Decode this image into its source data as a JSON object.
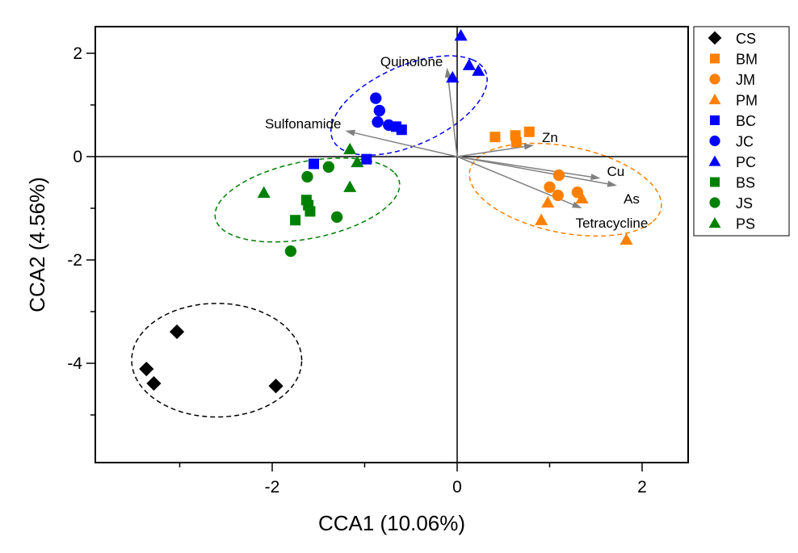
{
  "chart_data": {
    "type": "scatter",
    "title": "",
    "xlabel": "CCA1 (10.06%)",
    "ylabel": "CCA2 (4.56%)",
    "xlim": [
      -3.9,
      2.5
    ],
    "ylim": [
      -5.9,
      2.5
    ],
    "x_ticks": [
      -2,
      0,
      2
    ],
    "x_tick_labels": [
      "-2",
      "0",
      "2"
    ],
    "x_minor_ticks": [
      -3,
      -1,
      1
    ],
    "y_ticks": [
      2,
      0,
      -2,
      -4
    ],
    "y_tick_labels": [
      "2",
      "0",
      "-2",
      "-4"
    ],
    "y_minor_ticks": [
      1,
      -1,
      -3,
      -5
    ],
    "grid": false,
    "zero_lines": true,
    "legend_position": "right-top-outside",
    "series": [
      {
        "name": "CS",
        "marker": "diamond",
        "color": "#000000",
        "points": [
          [
            -3.03,
            -3.39
          ],
          [
            -3.36,
            -4.11
          ],
          [
            -3.28,
            -4.39
          ],
          [
            -1.96,
            -4.44
          ]
        ]
      },
      {
        "name": "BM",
        "marker": "square",
        "color": "#ff8000",
        "points": [
          [
            0.41,
            0.38
          ],
          [
            0.63,
            0.41
          ],
          [
            0.64,
            0.28
          ],
          [
            0.78,
            0.48
          ]
        ]
      },
      {
        "name": "JM",
        "marker": "circle",
        "color": "#ff8000",
        "points": [
          [
            1.1,
            -0.36
          ],
          [
            1.0,
            -0.59
          ],
          [
            1.09,
            -0.75
          ],
          [
            1.3,
            -0.69
          ]
        ]
      },
      {
        "name": "PM",
        "marker": "triangle",
        "color": "#ff8000",
        "points": [
          [
            0.98,
            -0.89
          ],
          [
            0.91,
            -1.23
          ],
          [
            1.35,
            -0.81
          ],
          [
            1.83,
            -1.61
          ]
        ]
      },
      {
        "name": "BC",
        "marker": "square",
        "color": "#0000ff",
        "points": [
          [
            -0.66,
            0.58
          ],
          [
            -0.6,
            0.52
          ],
          [
            -1.55,
            -0.14
          ],
          [
            -0.98,
            -0.05
          ]
        ]
      },
      {
        "name": "JC",
        "marker": "circle",
        "color": "#0000ff",
        "points": [
          [
            -0.88,
            1.13
          ],
          [
            -0.84,
            0.89
          ],
          [
            -0.86,
            0.67
          ],
          [
            -0.74,
            0.61
          ]
        ]
      },
      {
        "name": "PC",
        "marker": "triangle",
        "color": "#0000ff",
        "points": [
          [
            0.04,
            2.34
          ],
          [
            -0.05,
            1.53
          ],
          [
            0.13,
            1.77
          ],
          [
            0.23,
            1.66
          ]
        ]
      },
      {
        "name": "BS",
        "marker": "square",
        "color": "#008000",
        "points": [
          [
            -1.63,
            -0.84
          ],
          [
            -1.61,
            -0.94
          ],
          [
            -1.59,
            -1.06
          ],
          [
            -1.75,
            -1.23
          ]
        ]
      },
      {
        "name": "JS",
        "marker": "circle",
        "color": "#008000",
        "points": [
          [
            -1.39,
            -0.2
          ],
          [
            -1.62,
            -0.39
          ],
          [
            -1.3,
            -1.17
          ],
          [
            -1.8,
            -1.83
          ]
        ]
      },
      {
        "name": "PS",
        "marker": "triangle",
        "color": "#008000",
        "points": [
          [
            -2.09,
            -0.7
          ],
          [
            -1.16,
            -0.59
          ],
          [
            -1.16,
            0.14
          ],
          [
            -1.08,
            -0.11
          ]
        ]
      }
    ],
    "vectors": [
      {
        "name": "Quinolone",
        "end": [
          -0.11,
          1.72
        ]
      },
      {
        "name": "Sulfonamide",
        "end": [
          -1.21,
          0.5
        ]
      },
      {
        "name": "Zn",
        "end": [
          0.83,
          0.22
        ]
      },
      {
        "name": "Cu",
        "end": [
          1.55,
          -0.42
        ]
      },
      {
        "name": "As",
        "end": [
          1.73,
          -0.56
        ]
      },
      {
        "name": "Tetracycline",
        "end": [
          1.35,
          -1.0
        ]
      }
    ],
    "vector_color": "#808080",
    "confidence_ellipses": [
      {
        "group": "C (blue)",
        "color": "#0000ff",
        "center": [
          -0.52,
          0.99
        ],
        "semi_axes": [
          1.12,
          0.62
        ],
        "angle_deg": 52
      },
      {
        "group": "M (orange)",
        "color": "#ff8000",
        "center": [
          1.17,
          -0.64
        ],
        "semi_axes": [
          1.13,
          0.78
        ],
        "angle_deg": -33
      },
      {
        "group": "S (green)",
        "color": "#008000",
        "center": [
          -1.62,
          -0.84
        ],
        "semi_axes": [
          1.08,
          0.7
        ],
        "angle_deg": 30
      },
      {
        "group": "CS (black)",
        "color": "#000000",
        "center": [
          -2.6,
          -3.94
        ],
        "semi_axes": [
          0.92,
          1.1
        ],
        "angle_deg": 0
      }
    ]
  }
}
